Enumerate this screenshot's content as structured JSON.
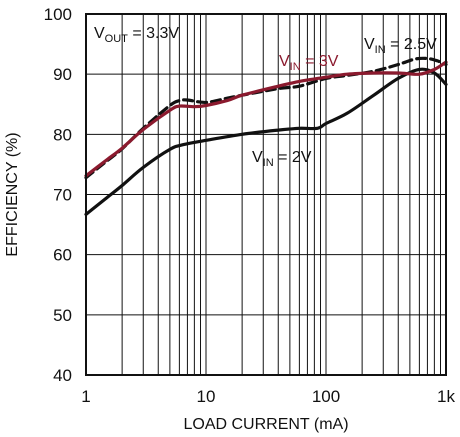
{
  "chart_data": {
    "type": "line",
    "title": "",
    "xlabel": "LOAD CURRENT (mA)",
    "ylabel": "EFFICIENCY (%)",
    "x_scale": "log",
    "xlim": [
      1,
      1000
    ],
    "ylim": [
      40,
      100
    ],
    "grid": true,
    "x_ticks": [
      {
        "value": 1,
        "label": "1"
      },
      {
        "value": 10,
        "label": "10"
      },
      {
        "value": 100,
        "label": "100"
      },
      {
        "value": 1000,
        "label": "1k"
      }
    ],
    "y_ticks": [
      {
        "value": 40,
        "label": "40"
      },
      {
        "value": 50,
        "label": "50"
      },
      {
        "value": 60,
        "label": "60"
      },
      {
        "value": 70,
        "label": "70"
      },
      {
        "value": 80,
        "label": "80"
      },
      {
        "value": 90,
        "label": "90"
      },
      {
        "value": 100,
        "label": "100"
      }
    ],
    "annotations": {
      "vout": {
        "main": "V",
        "sub": "OUT",
        "rest": " = 3.3V"
      },
      "vin_25": {
        "main": "V",
        "sub": "IN",
        "rest": " = 2.5V"
      },
      "vin_3": {
        "main": "V",
        "sub": "IN",
        "rest": " = 3V"
      },
      "vin_2": {
        "main": "V",
        "sub": "IN",
        "rest": " = 2V"
      }
    },
    "series": [
      {
        "name": "VIN = 2V",
        "color": "#111111",
        "dash": "solid",
        "x": [
          1,
          1.5,
          2,
          3,
          5,
          6.5,
          10,
          20,
          40,
          60,
          85,
          100,
          150,
          250,
          400,
          600,
          800,
          1000
        ],
        "y": [
          66.7,
          69.5,
          71.5,
          74.5,
          77.5,
          78.3,
          79,
          80,
          80.7,
          81,
          81,
          81.8,
          83.5,
          86.5,
          89.3,
          90.8,
          90.2,
          88.3
        ]
      },
      {
        "name": "VIN = 2.5V",
        "color": "#111111",
        "dash": "dashed",
        "x": [
          1,
          1.5,
          2,
          3,
          5,
          6,
          7,
          10,
          15,
          20,
          40,
          60,
          100,
          150,
          250,
          400,
          550,
          700,
          850,
          1000
        ],
        "y": [
          72.8,
          75.6,
          77.6,
          81,
          84.8,
          85.6,
          85.7,
          85.3,
          86,
          86.5,
          87.6,
          88,
          89.3,
          89.8,
          90.5,
          91.6,
          92.5,
          92.6,
          92.2,
          91.6
        ]
      },
      {
        "name": "VIN = 3V",
        "color": "#8b1a2e",
        "dash": "solid",
        "x": [
          1,
          1.5,
          2,
          3,
          5,
          6,
          8,
          10,
          15,
          20,
          40,
          60,
          100,
          150,
          250,
          400,
          600,
          800,
          1000
        ],
        "y": [
          73.1,
          75.8,
          77.7,
          80.8,
          84,
          84.7,
          84.6,
          84.8,
          85.6,
          86.5,
          88,
          88.8,
          89.5,
          90,
          90.2,
          90.2,
          90,
          90.8,
          92
        ]
      }
    ]
  }
}
